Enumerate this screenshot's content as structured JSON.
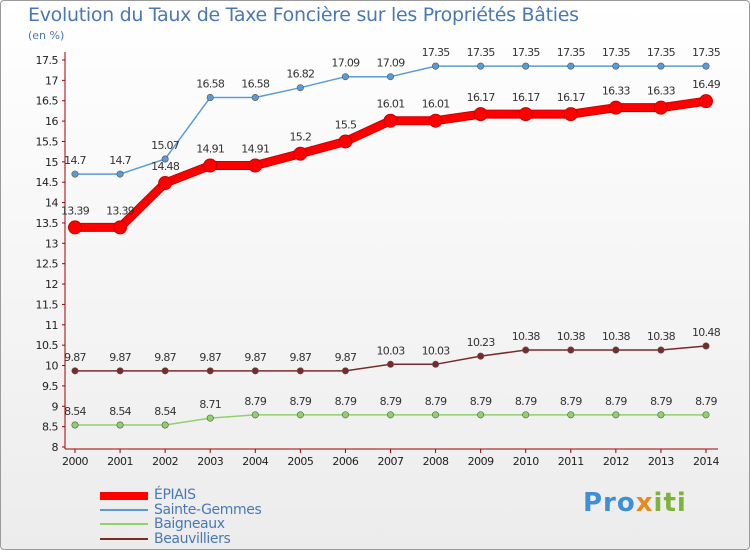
{
  "chart_data": {
    "type": "line",
    "title": "Evolution du Taux de Taxe Foncière sur les Propriétés Bâties",
    "unit_label": "(en %)",
    "x": [
      "2000",
      "2001",
      "2002",
      "2003",
      "2004",
      "2005",
      "2006",
      "2007",
      "2008",
      "2009",
      "2010",
      "2011",
      "2012",
      "2013",
      "2014"
    ],
    "ylim": [
      8,
      17.5
    ],
    "yticks": [
      "8",
      "8.5",
      "9",
      "9.5",
      "10",
      "10.5",
      "11",
      "11.5",
      "12",
      "12.5",
      "13",
      "13.5",
      "14",
      "14.5",
      "15",
      "15.5",
      "16",
      "16.5",
      "17",
      "17.5"
    ],
    "series": [
      {
        "name": "ÉPIAIS",
        "color": "#ff0000",
        "values": [
          13.39,
          13.39,
          14.48,
          14.91,
          14.91,
          15.2,
          15.5,
          16.01,
          16.01,
          16.17,
          16.17,
          16.17,
          16.33,
          16.33,
          16.49
        ],
        "labels": [
          "13.39",
          "13.39",
          "14.48",
          "14.91",
          "14.91",
          "15.2",
          "15.5",
          "16.01",
          "16.01",
          "16.17",
          "16.17",
          "16.17",
          "16.33",
          "16.33",
          "16.49"
        ]
      },
      {
        "name": "Sainte-Gemmes",
        "color": "#5b9bd5",
        "values": [
          14.7,
          14.7,
          15.07,
          16.58,
          16.58,
          16.82,
          17.09,
          17.09,
          17.35,
          17.35,
          17.35,
          17.35,
          17.35,
          17.35,
          17.35
        ],
        "labels": [
          "14.7",
          "14.7",
          "15.07",
          "16.58",
          "16.58",
          "16.82",
          "17.09",
          "17.09",
          "17.35",
          "17.35",
          "17.35",
          "17.35",
          "17.35",
          "17.35",
          "17.35"
        ]
      },
      {
        "name": "Baigneaux",
        "color": "#8fd16a",
        "values": [
          8.54,
          8.54,
          8.54,
          8.71,
          8.79,
          8.79,
          8.79,
          8.79,
          8.79,
          8.79,
          8.79,
          8.79,
          8.79,
          8.79,
          8.79
        ],
        "labels": [
          "8.54",
          "8.54",
          "8.54",
          "8.71",
          "8.79",
          "8.79",
          "8.79",
          "8.79",
          "8.79",
          "8.79",
          "8.79",
          "8.79",
          "8.79",
          "8.79",
          "8.79"
        ]
      },
      {
        "name": "Beauvilliers",
        "color": "#7b2a2a",
        "values": [
          9.87,
          9.87,
          9.87,
          9.87,
          9.87,
          9.87,
          9.87,
          10.03,
          10.03,
          10.23,
          10.38,
          10.38,
          10.38,
          10.38,
          10.48
        ],
        "labels": [
          "9.87",
          "9.87",
          "9.87",
          "9.87",
          "9.87",
          "9.87",
          "9.87",
          "10.03",
          "10.03",
          "10.23",
          "10.38",
          "10.38",
          "10.38",
          "10.38",
          "10.48"
        ]
      }
    ],
    "grid": false,
    "legend_position": "bottom-left"
  },
  "logo": {
    "part1": "Pro",
    "part2": "x",
    "part3": "iti"
  }
}
